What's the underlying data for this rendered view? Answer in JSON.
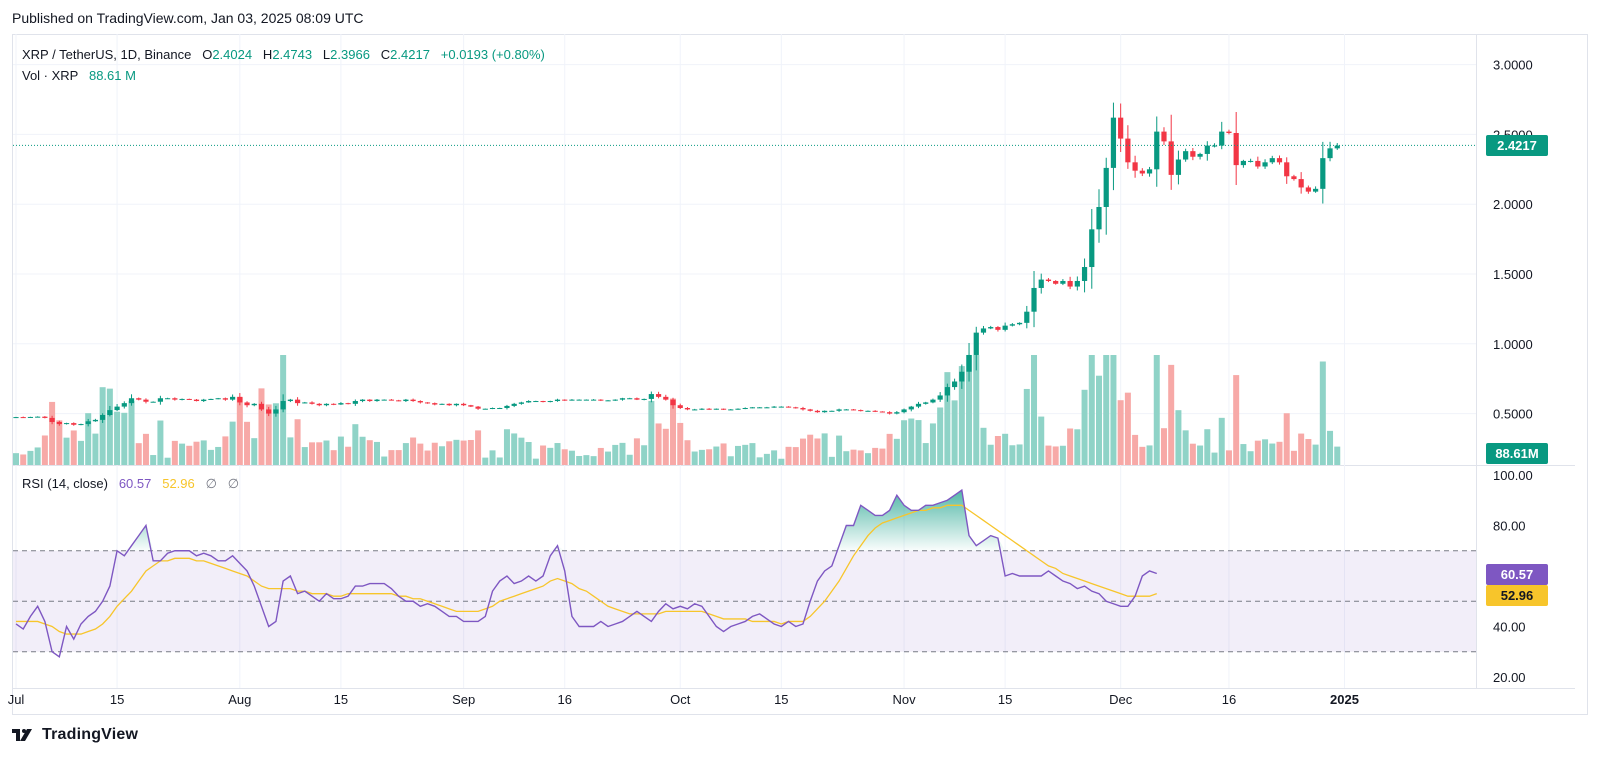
{
  "header": {
    "published": "Published on TradingView.com, Jan 03, 2025 08:09 UTC"
  },
  "legend": {
    "symbol": "XRP / TetherUS, 1D, Binance",
    "o_label": "O",
    "o_value": "2.4024",
    "h_label": "H",
    "h_value": "2.4743",
    "l_label": "L",
    "l_value": "2.3966",
    "c_label": "C",
    "c_value": "2.4217",
    "change": "+0.0193 (+0.80%)",
    "vol_label": "Vol · XRP",
    "vol_value": "88.61 M"
  },
  "rsi_legend": {
    "label": "RSI (14, close)",
    "rsi_value": "60.57",
    "ma_value": "52.96",
    "extra1": "∅",
    "extra2": "∅"
  },
  "price_tag": "2.4217",
  "volume_tag": "88.61M",
  "rsi_tag": "60.57",
  "rsi_ma_tag": "52.96",
  "footer": {
    "brand": "TradingView"
  },
  "colors": {
    "up": "#089981",
    "down": "#f23645",
    "vol_up": "#8fd3c7",
    "vol_down": "#f7a9a7",
    "rsi": "#7e57c2",
    "rsi_ma": "#f7c52b",
    "rsi_band": "#7e57c2"
  },
  "chart_data": {
    "type": "candlestick",
    "price_axis": {
      "ticks": [
        "3.0000",
        "2.5000",
        "2.0000",
        "1.5000",
        "1.0000",
        "0.5000"
      ],
      "values": [
        3.0,
        2.5,
        2.0,
        1.5,
        1.0,
        0.5
      ]
    },
    "rsi_axis": {
      "ticks": [
        "100.00",
        "80.00",
        "40.00",
        "20.00"
      ],
      "values": [
        100,
        80,
        40,
        20
      ],
      "upper_band": 70,
      "middle": 50,
      "lower_band": 30
    },
    "x_labels": [
      "Jul",
      "15",
      "Aug",
      "15",
      "Sep",
      "16",
      "Oct",
      "15",
      "Nov",
      "15",
      "Dec",
      "16",
      "2025"
    ],
    "x_label_days": [
      0,
      14,
      31,
      45,
      62,
      76,
      92,
      106,
      123,
      137,
      153,
      168,
      184
    ],
    "last_price": 2.4217,
    "closes": [
      0.475,
      0.474,
      0.476,
      0.478,
      0.469,
      0.44,
      0.425,
      0.432,
      0.42,
      0.425,
      0.445,
      0.455,
      0.49,
      0.525,
      0.55,
      0.575,
      0.61,
      0.6,
      0.585,
      0.585,
      0.61,
      0.61,
      0.6,
      0.605,
      0.6,
      0.59,
      0.6,
      0.605,
      0.61,
      0.6,
      0.62,
      0.58,
      0.56,
      0.57,
      0.53,
      0.5,
      0.53,
      0.59,
      0.6,
      0.575,
      0.58,
      0.57,
      0.56,
      0.57,
      0.565,
      0.575,
      0.57,
      0.59,
      0.6,
      0.59,
      0.6,
      0.6,
      0.595,
      0.59,
      0.6,
      0.59,
      0.58,
      0.575,
      0.565,
      0.57,
      0.56,
      0.57,
      0.56,
      0.55,
      0.535,
      0.535,
      0.54,
      0.54,
      0.555,
      0.57,
      0.58,
      0.59,
      0.59,
      0.585,
      0.59,
      0.6,
      0.595,
      0.6,
      0.6,
      0.6,
      0.6,
      0.595,
      0.595,
      0.6,
      0.61,
      0.61,
      0.6,
      0.605,
      0.64,
      0.62,
      0.6,
      0.56,
      0.54,
      0.53,
      0.53,
      0.535,
      0.53,
      0.535,
      0.53,
      0.53,
      0.535,
      0.54,
      0.545,
      0.545,
      0.545,
      0.55,
      0.55,
      0.545,
      0.54,
      0.53,
      0.52,
      0.51,
      0.52,
      0.52,
      0.53,
      0.53,
      0.525,
      0.52,
      0.52,
      0.515,
      0.51,
      0.5,
      0.51,
      0.53,
      0.55,
      0.57,
      0.58,
      0.6,
      0.63,
      0.69,
      0.73,
      0.8,
      0.92,
      1.08,
      1.11,
      1.12,
      1.1,
      1.13,
      1.14,
      1.15,
      1.23,
      1.4,
      1.46,
      1.45,
      1.43,
      1.45,
      1.41,
      1.45,
      1.55,
      1.82,
      1.98,
      2.26,
      2.62,
      2.47,
      2.3,
      2.24,
      2.22,
      2.25,
      2.52,
      2.45,
      2.21,
      2.32,
      2.38,
      2.34,
      2.36,
      2.42,
      2.42,
      2.52,
      2.51,
      2.28,
      2.31,
      2.31,
      2.27,
      2.3,
      2.33,
      2.3,
      2.2,
      2.18,
      2.12,
      2.09,
      2.11,
      2.33,
      2.4,
      2.42
    ],
    "rsi": [
      41,
      39,
      44,
      48,
      42,
      30,
      28,
      40,
      35,
      41,
      44,
      46,
      50,
      56,
      70,
      68,
      72,
      76,
      80,
      66,
      66,
      69,
      70,
      70,
      70,
      68,
      69,
      68,
      66,
      66,
      68,
      65,
      62,
      56,
      48,
      40,
      42,
      58,
      60,
      53,
      54,
      52,
      50,
      53,
      51,
      51,
      52,
      56,
      56,
      57,
      57,
      57,
      55,
      52,
      50,
      50,
      48,
      49,
      48,
      46,
      44,
      44,
      42,
      42,
      42,
      44,
      54,
      58,
      60,
      57,
      58,
      60,
      58,
      60,
      68,
      72,
      62,
      44,
      40,
      40,
      40,
      42,
      40,
      41,
      42,
      44,
      46,
      44,
      42,
      46,
      49,
      47,
      48,
      47,
      49,
      48,
      44,
      40,
      38,
      40,
      41,
      42,
      44,
      45,
      43,
      41,
      40,
      42,
      40,
      41,
      50,
      58,
      62,
      64,
      72,
      80,
      80,
      88,
      86,
      84,
      84,
      86,
      92,
      88,
      86,
      86,
      88,
      88,
      89,
      90,
      92,
      94,
      76,
      72,
      74,
      76,
      75,
      60,
      61,
      60,
      60,
      60,
      60,
      62,
      60,
      58,
      57,
      55,
      56,
      54,
      53,
      50,
      49,
      48,
      48,
      52,
      60,
      62,
      61
    ],
    "rsi_ma": [
      42,
      42,
      42,
      42,
      41,
      40,
      38,
      37,
      37,
      37,
      38,
      39,
      41,
      44,
      48,
      51,
      54,
      58,
      62,
      64,
      66,
      66,
      67,
      67,
      67,
      66,
      66,
      65,
      64,
      63,
      62,
      61,
      60,
      58,
      56,
      55,
      55,
      55,
      55,
      54,
      54,
      53,
      53,
      53,
      52,
      52,
      53,
      53,
      53,
      53,
      53,
      53,
      53,
      52,
      52,
      51,
      51,
      50,
      49,
      48,
      47,
      46,
      46,
      46,
      46,
      47,
      48,
      50,
      51,
      52,
      53,
      54,
      55,
      56,
      58,
      59,
      58,
      57,
      55,
      54,
      52,
      50,
      48,
      47,
      46,
      45,
      45,
      45,
      45,
      45,
      46,
      46,
      46,
      46,
      46,
      46,
      45,
      44,
      43,
      43,
      43,
      43,
      42,
      42,
      42,
      42,
      41,
      42,
      42,
      42,
      44,
      47,
      50,
      54,
      58,
      63,
      68,
      72,
      76,
      79,
      81,
      82,
      83,
      84,
      85,
      86,
      86,
      87,
      87,
      88,
      88,
      88,
      86,
      84,
      82,
      80,
      78,
      76,
      74,
      72,
      70,
      68,
      66,
      64,
      63,
      61,
      60,
      59,
      58,
      57,
      56,
      55,
      54,
      53,
      52,
      52,
      52,
      52,
      53
    ],
    "volume_note": "relative daily volume bars, max ~ the Dec 3 spike"
  }
}
